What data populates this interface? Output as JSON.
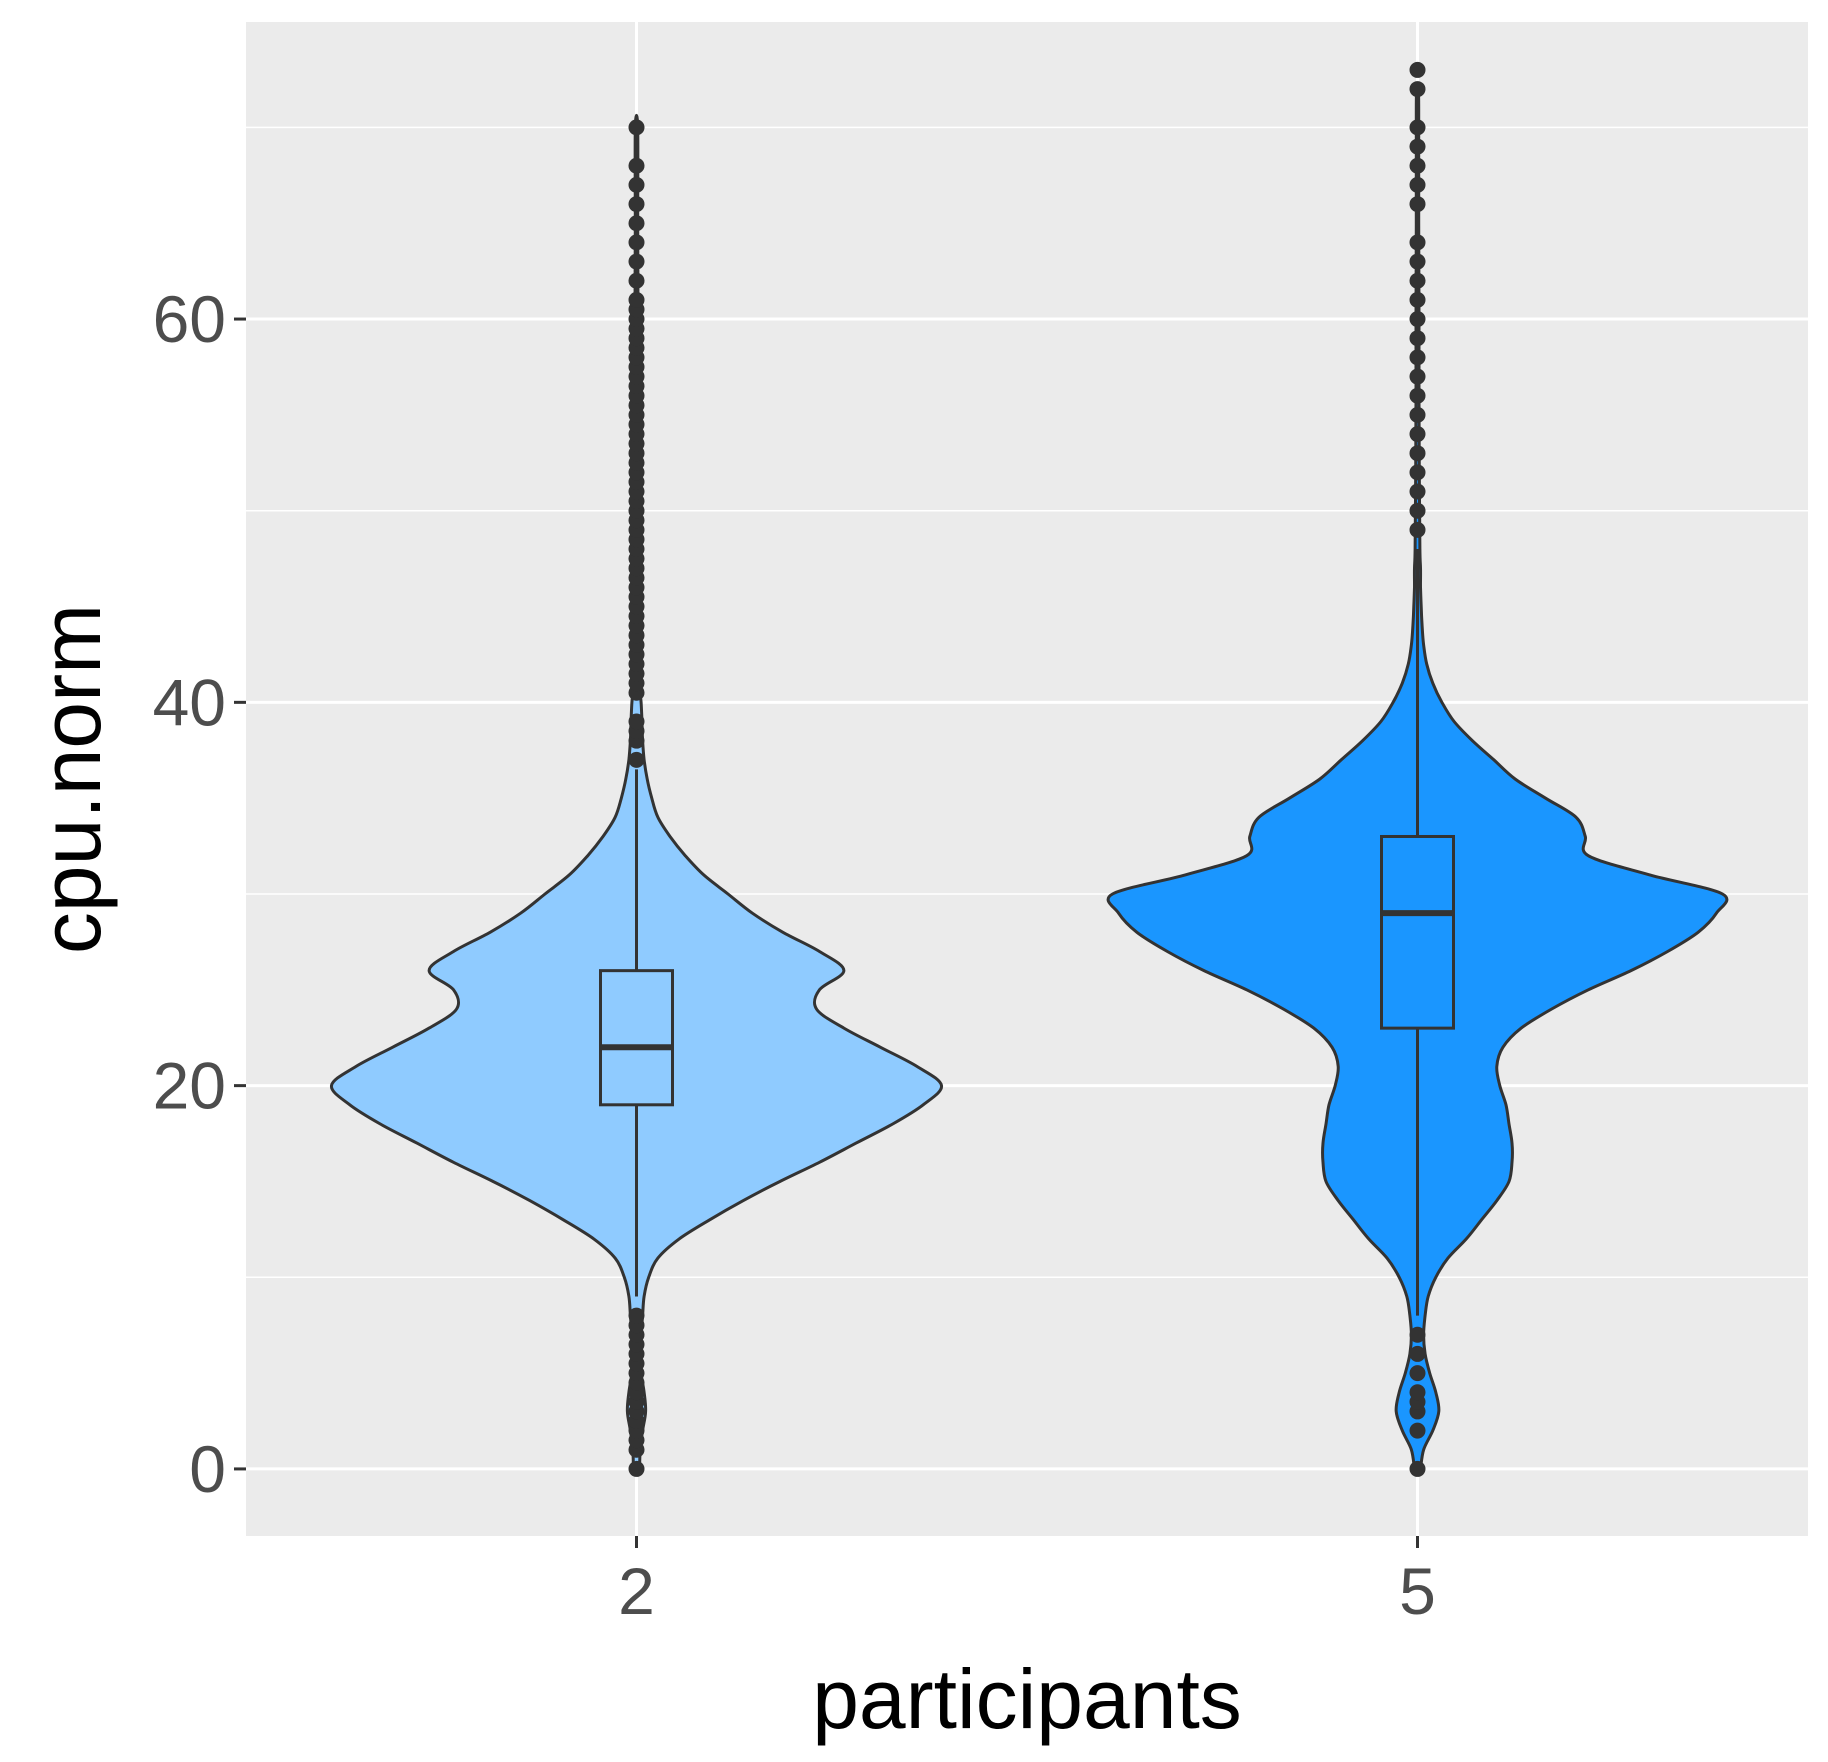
{
  "chart_data": {
    "type": "violin",
    "title": "",
    "xlabel": "participants",
    "ylabel": "cpu.norm",
    "categories": [
      "2",
      "5"
    ],
    "y_ticks": [
      0,
      20,
      40,
      60
    ],
    "ylim": [
      -3.5,
      75.5
    ],
    "grid": true,
    "legend": "none",
    "colors": {
      "panel": "#ebebeb",
      "grid": "#ffffff",
      "outline": "#333333",
      "tick_text": "#4d4d4d",
      "title_text": "#000000"
    },
    "series": [
      {
        "category": "2",
        "fill": "#8fcbff",
        "box": {
          "q1": 19,
          "median": 22,
          "q3": 26,
          "whisker_low": 9,
          "whisker_high": 36.5
        },
        "density": [
          [
            0,
            0.01
          ],
          [
            1,
            0.012
          ],
          [
            2,
            0.02
          ],
          [
            3,
            0.03
          ],
          [
            4,
            0.025
          ],
          [
            5,
            0.015
          ],
          [
            6,
            0.012
          ],
          [
            7,
            0.015
          ],
          [
            8,
            0.02
          ],
          [
            9,
            0.025
          ],
          [
            10,
            0.04
          ],
          [
            11,
            0.07
          ],
          [
            12,
            0.14
          ],
          [
            13,
            0.24
          ],
          [
            14,
            0.35
          ],
          [
            15,
            0.47
          ],
          [
            16,
            0.6
          ],
          [
            17,
            0.72
          ],
          [
            18,
            0.84
          ],
          [
            19,
            0.94
          ],
          [
            20,
            1.0
          ],
          [
            21,
            0.92
          ],
          [
            22,
            0.8
          ],
          [
            23,
            0.68
          ],
          [
            24,
            0.59
          ],
          [
            25,
            0.6
          ],
          [
            26,
            0.68
          ],
          [
            27,
            0.6
          ],
          [
            28,
            0.48
          ],
          [
            29,
            0.38
          ],
          [
            30,
            0.3
          ],
          [
            31,
            0.22
          ],
          [
            32,
            0.16
          ],
          [
            33,
            0.11
          ],
          [
            34,
            0.07
          ],
          [
            35,
            0.05
          ],
          [
            36,
            0.035
          ],
          [
            37,
            0.025
          ],
          [
            38,
            0.02
          ],
          [
            39,
            0.018
          ],
          [
            40,
            0.015
          ],
          [
            41,
            0.01
          ],
          [
            45,
            0.008
          ],
          [
            50,
            0.006
          ],
          [
            55,
            0.005
          ],
          [
            60,
            0.005
          ],
          [
            65,
            0.004
          ],
          [
            70,
            0.004
          ]
        ],
        "outliers": [
          0,
          1,
          1.5,
          2,
          2.5,
          3,
          3.5,
          4,
          4.5,
          5,
          5.5,
          6,
          6.5,
          7,
          7.5,
          8,
          37,
          38,
          38.5,
          39,
          40.5,
          41,
          41.5,
          42,
          42.5,
          43,
          43.5,
          44,
          44.5,
          45,
          45.5,
          46,
          46.5,
          47,
          47.5,
          48,
          48.5,
          49,
          49.5,
          50,
          50.5,
          51,
          51.5,
          52,
          52.5,
          53,
          53.5,
          54,
          54.5,
          55,
          55.5,
          56,
          56.5,
          57,
          57.5,
          58,
          58.5,
          59,
          59.5,
          60,
          60.5,
          61,
          62,
          63,
          64,
          65,
          66,
          67,
          68,
          70
        ]
      },
      {
        "category": "5",
        "fill": "#1a96ff",
        "box": {
          "q1": 23,
          "median": 29,
          "q3": 33,
          "whisker_low": 8,
          "whisker_high": 48
        },
        "density": [
          [
            0,
            0.01
          ],
          [
            1,
            0.02
          ],
          [
            2,
            0.05
          ],
          [
            3,
            0.07
          ],
          [
            4,
            0.06
          ],
          [
            5,
            0.04
          ],
          [
            6,
            0.025
          ],
          [
            7,
            0.02
          ],
          [
            8,
            0.025
          ],
          [
            9,
            0.035
          ],
          [
            10,
            0.06
          ],
          [
            11,
            0.1
          ],
          [
            12,
            0.16
          ],
          [
            13,
            0.21
          ],
          [
            14,
            0.26
          ],
          [
            15,
            0.3
          ],
          [
            16,
            0.31
          ],
          [
            17,
            0.31
          ],
          [
            18,
            0.3
          ],
          [
            19,
            0.29
          ],
          [
            20,
            0.27
          ],
          [
            21,
            0.26
          ],
          [
            22,
            0.28
          ],
          [
            23,
            0.34
          ],
          [
            24,
            0.44
          ],
          [
            25,
            0.56
          ],
          [
            26,
            0.7
          ],
          [
            27,
            0.82
          ],
          [
            28,
            0.92
          ],
          [
            29,
            0.98
          ],
          [
            30,
            1.0
          ],
          [
            31,
            0.76
          ],
          [
            32,
            0.56
          ],
          [
            33,
            0.55
          ],
          [
            34,
            0.52
          ],
          [
            35,
            0.42
          ],
          [
            36,
            0.32
          ],
          [
            37,
            0.25
          ],
          [
            38,
            0.18
          ],
          [
            39,
            0.12
          ],
          [
            40,
            0.08
          ],
          [
            41,
            0.05
          ],
          [
            42,
            0.03
          ],
          [
            43,
            0.02
          ],
          [
            44,
            0.015
          ],
          [
            45,
            0.012
          ],
          [
            46,
            0.01
          ],
          [
            47,
            0.01
          ],
          [
            48,
            0.008
          ],
          [
            52,
            0.006
          ],
          [
            56,
            0.005
          ],
          [
            60,
            0.005
          ],
          [
            65,
            0.004
          ],
          [
            70,
            0.004
          ],
          [
            72,
            0.003
          ]
        ],
        "outliers": [
          0,
          2,
          3,
          3.5,
          4,
          5,
          6,
          7,
          49,
          50,
          51,
          52,
          53,
          54,
          55,
          56,
          57,
          58,
          59,
          60,
          61,
          62,
          63,
          64,
          66,
          67,
          68,
          69,
          70,
          72,
          73
        ]
      }
    ]
  }
}
